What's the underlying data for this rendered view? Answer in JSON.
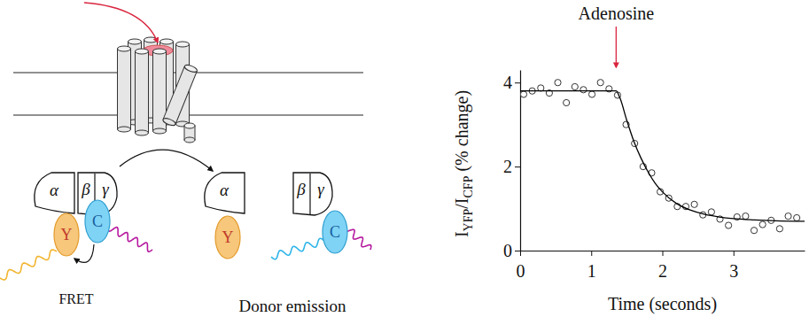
{
  "diagram": {
    "complex": {
      "alpha": "α",
      "beta": "β",
      "gamma": "γ",
      "acceptor": "Y",
      "donor": "C",
      "label": "FRET"
    },
    "separated": {
      "alpha": "α",
      "beta": "β",
      "gamma": "γ",
      "acceptor": "Y",
      "donor": "C",
      "label": "Donor emission"
    }
  },
  "chart_data": {
    "type": "scatter",
    "xlabel": "Time (seconds)",
    "ylabel": [
      "I",
      "YFP",
      "/I",
      "CFP",
      " (% change)"
    ],
    "xlim": [
      0,
      4
    ],
    "xticks": [
      0,
      1,
      2,
      3
    ],
    "ylim": [
      0,
      4.3
    ],
    "yticks": [
      0,
      2,
      4
    ],
    "annotations": [
      {
        "text": "Adenosine",
        "x": 1.35
      }
    ],
    "series": [
      {
        "type": "scatter",
        "marker": "circle",
        "color": "#333333",
        "x": [
          0.05,
          0.17,
          0.29,
          0.41,
          0.53,
          0.65,
          0.77,
          0.89,
          1.01,
          1.13,
          1.25,
          1.37,
          1.49,
          1.61,
          1.73,
          1.85,
          1.97,
          2.09,
          2.21,
          2.33,
          2.45,
          2.57,
          2.69,
          2.81,
          2.93,
          3.05,
          3.17,
          3.29,
          3.41,
          3.53,
          3.65,
          3.77,
          3.89
        ],
        "values": [
          3.72,
          3.8,
          3.87,
          3.75,
          4.0,
          3.52,
          3.9,
          3.83,
          3.72,
          4.0,
          3.85,
          3.7,
          3.0,
          2.55,
          2.0,
          1.85,
          1.4,
          1.25,
          1.05,
          1.05,
          1.1,
          0.85,
          0.92,
          0.75,
          0.6,
          0.8,
          0.82,
          0.48,
          0.62,
          0.72,
          0.52,
          0.82,
          0.78
        ]
      },
      {
        "type": "line",
        "line_style": "solid",
        "color": "#000000",
        "x": [
          0,
          1.35,
          1.4,
          1.5,
          1.6,
          1.7,
          1.8,
          1.9,
          2.0,
          2.2,
          2.4,
          2.6,
          2.8,
          3.0,
          3.3,
          3.6,
          4.0
        ],
        "values": [
          3.8,
          3.8,
          3.65,
          3.1,
          2.6,
          2.2,
          1.87,
          1.6,
          1.4,
          1.12,
          0.96,
          0.86,
          0.8,
          0.76,
          0.73,
          0.71,
          0.7
        ]
      }
    ]
  }
}
